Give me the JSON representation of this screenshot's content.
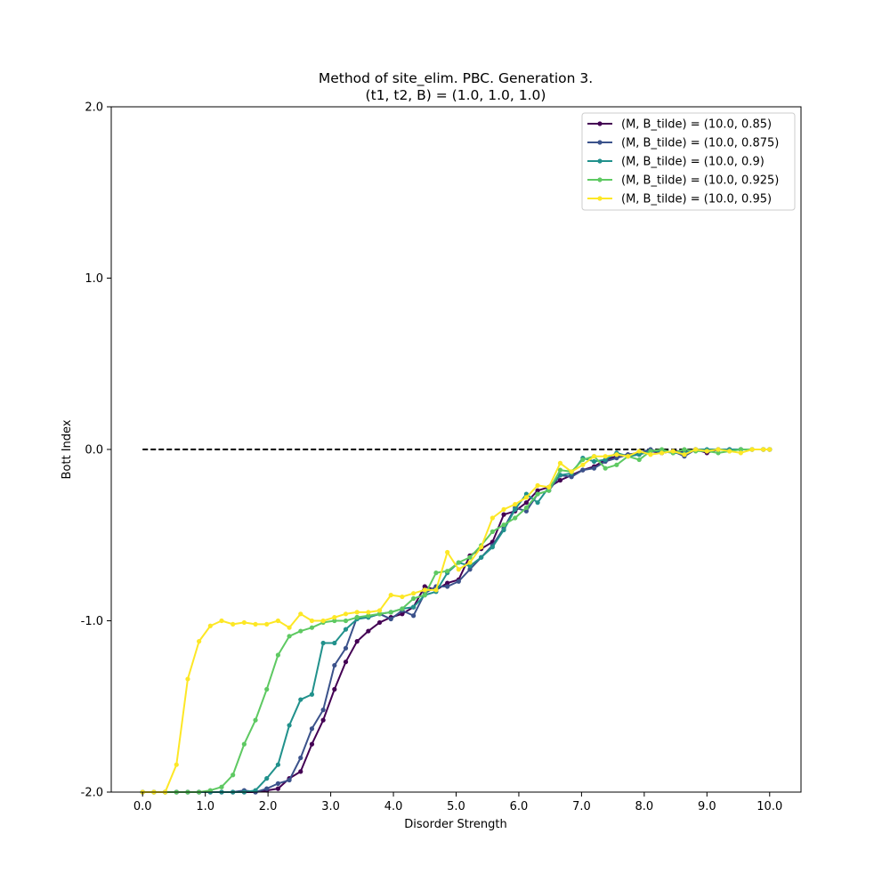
{
  "chart_data": {
    "type": "line",
    "title": "Method of site_elim. PBC. Generation 3.",
    "subtitle": "(t1, t2, B) = (1.0, 1.0, 1.0)",
    "xlabel": "Disorder Strength",
    "ylabel": "Bott Index",
    "xlim": [
      -0.5,
      10.5
    ],
    "ylim": [
      -2.0,
      2.0
    ],
    "xticks": [
      "0.0",
      "1.0",
      "2.0",
      "3.0",
      "4.0",
      "5.0",
      "6.0",
      "7.0",
      "8.0",
      "9.0",
      "10.0"
    ],
    "xtick_values": [
      0,
      1,
      2,
      3,
      4,
      5,
      6,
      7,
      8,
      9,
      10
    ],
    "yticks": [
      "-2.0",
      "-1.0",
      "0.0",
      "1.0",
      "2.0"
    ],
    "ytick_values": [
      -2,
      -1,
      0,
      1,
      2
    ],
    "grid": false,
    "legend_position": "top-right",
    "reference_line": {
      "y": 0.0,
      "x_start": 0.0,
      "x_end": 10.0,
      "style": "dashed",
      "color": "#000000"
    },
    "x": [
      0.0,
      0.18,
      0.36,
      0.54,
      0.72,
      0.9,
      1.08,
      1.26,
      1.44,
      1.62,
      1.8,
      1.98,
      2.16,
      2.34,
      2.52,
      2.7,
      2.88,
      3.06,
      3.24,
      3.42,
      3.6,
      3.78,
      3.96,
      4.14,
      4.32,
      4.5,
      4.68,
      4.86,
      5.04,
      5.22,
      5.4,
      5.58,
      5.76,
      5.94,
      6.12,
      6.3,
      6.48,
      6.66,
      6.84,
      7.02,
      7.2,
      7.38,
      7.56,
      7.74,
      7.92,
      8.1,
      8.28,
      8.46,
      8.64,
      8.82,
      9.0,
      9.18,
      9.36,
      9.54,
      9.72,
      9.9,
      10.0
    ],
    "series": [
      {
        "name": "(M, B_tilde) = (10.0, 0.85)",
        "color": "#440154",
        "values": [
          -2.0,
          -2.0,
          -2.0,
          -2.0,
          -2.0,
          -2.0,
          -2.0,
          -2.0,
          -2.0,
          -2.0,
          -2.0,
          -1.99,
          -1.98,
          -1.92,
          -1.88,
          -1.72,
          -1.58,
          -1.4,
          -1.24,
          -1.12,
          -1.06,
          -1.01,
          -0.98,
          -0.96,
          -0.92,
          -0.8,
          -0.82,
          -0.78,
          -0.76,
          -0.62,
          -0.58,
          -0.54,
          -0.38,
          -0.36,
          -0.31,
          -0.24,
          -0.22,
          -0.18,
          -0.15,
          -0.12,
          -0.1,
          -0.06,
          -0.04,
          -0.03,
          -0.02,
          -0.01,
          -0.02,
          -0.01,
          -0.01,
          0.0,
          -0.02,
          0.0,
          0.0,
          0.0,
          0.0,
          0.0,
          0.0
        ]
      },
      {
        "name": "(M, B_tilde) = (10.0, 0.875)",
        "color": "#3b528b",
        "values": [
          -2.0,
          -2.0,
          -2.0,
          -2.0,
          -2.0,
          -2.0,
          -2.0,
          -2.0,
          -2.0,
          -1.99,
          -2.0,
          -1.98,
          -1.95,
          -1.93,
          -1.8,
          -1.63,
          -1.52,
          -1.26,
          -1.16,
          -0.98,
          -0.98,
          -0.96,
          -0.99,
          -0.94,
          -0.97,
          -0.84,
          -0.8,
          -0.8,
          -0.77,
          -0.7,
          -0.63,
          -0.56,
          -0.46,
          -0.34,
          -0.36,
          -0.26,
          -0.24,
          -0.15,
          -0.16,
          -0.12,
          -0.11,
          -0.07,
          -0.05,
          -0.03,
          -0.02,
          0.0,
          -0.02,
          -0.01,
          -0.04,
          0.0,
          -0.01,
          0.0,
          0.0,
          0.0,
          0.0,
          0.0,
          0.0
        ]
      },
      {
        "name": "(M, B_tilde) = (10.0, 0.9)",
        "color": "#21918c",
        "values": [
          -2.0,
          -2.0,
          -2.0,
          -2.0,
          -2.0,
          -2.0,
          -2.0,
          -2.0,
          -2.0,
          -2.0,
          -1.99,
          -1.92,
          -1.84,
          -1.61,
          -1.46,
          -1.43,
          -1.13,
          -1.13,
          -1.05,
          -0.99,
          -0.98,
          -0.96,
          -0.95,
          -0.93,
          -0.92,
          -0.85,
          -0.83,
          -0.72,
          -0.66,
          -0.68,
          -0.63,
          -0.57,
          -0.47,
          -0.35,
          -0.26,
          -0.31,
          -0.22,
          -0.15,
          -0.14,
          -0.05,
          -0.07,
          -0.06,
          -0.02,
          -0.04,
          -0.03,
          -0.01,
          -0.01,
          -0.02,
          -0.02,
          0.0,
          0.0,
          0.0,
          0.0,
          0.0,
          0.0,
          0.0,
          0.0
        ]
      },
      {
        "name": "(M, B_tilde) = (10.0, 0.925)",
        "color": "#5ec962",
        "values": [
          -2.0,
          -2.0,
          -2.0,
          -2.0,
          -2.0,
          -2.0,
          -1.99,
          -1.97,
          -1.9,
          -1.72,
          -1.58,
          -1.4,
          -1.2,
          -1.09,
          -1.06,
          -1.04,
          -1.01,
          -1.0,
          -1.0,
          -0.98,
          -0.97,
          -0.96,
          -0.95,
          -0.93,
          -0.87,
          -0.85,
          -0.72,
          -0.71,
          -0.66,
          -0.63,
          -0.56,
          -0.48,
          -0.44,
          -0.4,
          -0.34,
          -0.26,
          -0.24,
          -0.12,
          -0.13,
          -0.06,
          -0.04,
          -0.11,
          -0.09,
          -0.04,
          -0.06,
          -0.01,
          0.0,
          -0.02,
          0.0,
          -0.01,
          -0.01,
          -0.02,
          -0.01,
          0.0,
          0.0,
          0.0,
          0.0
        ]
      },
      {
        "name": "(M, B_tilde) = (10.0, 0.95)",
        "color": "#fde725",
        "values": [
          -2.0,
          -2.0,
          -2.0,
          -1.84,
          -1.34,
          -1.12,
          -1.03,
          -1.0,
          -1.02,
          -1.01,
          -1.02,
          -1.02,
          -1.0,
          -1.04,
          -0.96,
          -1.0,
          -1.0,
          -0.98,
          -0.96,
          -0.95,
          -0.95,
          -0.94,
          -0.85,
          -0.86,
          -0.84,
          -0.82,
          -0.82,
          -0.6,
          -0.7,
          -0.66,
          -0.57,
          -0.4,
          -0.35,
          -0.32,
          -0.28,
          -0.21,
          -0.22,
          -0.08,
          -0.13,
          -0.09,
          -0.04,
          -0.04,
          -0.03,
          -0.04,
          -0.01,
          -0.03,
          -0.02,
          -0.01,
          -0.03,
          0.0,
          -0.01,
          0.0,
          -0.01,
          -0.02,
          0.0,
          0.0,
          0.0
        ]
      }
    ]
  }
}
